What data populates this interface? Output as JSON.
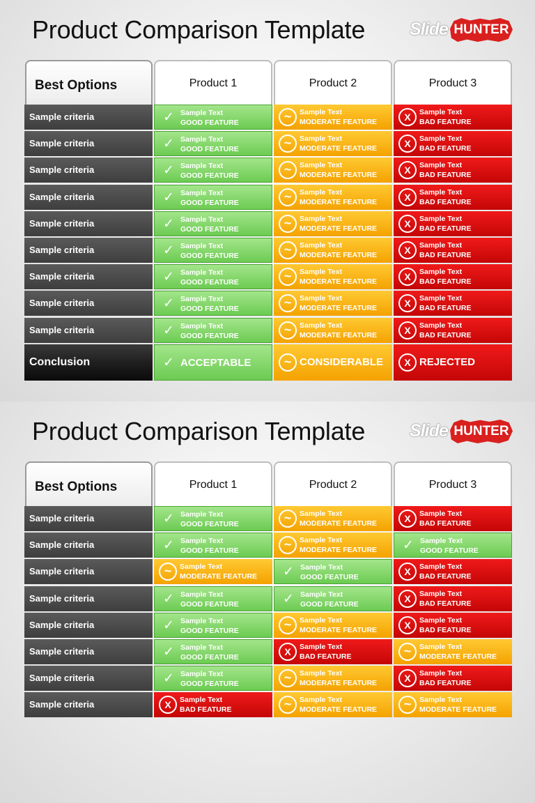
{
  "slides": [
    {
      "title": "Product Comparison Template",
      "logo": {
        "slide_word": "Slide",
        "hunter_word": "HUNTER"
      },
      "header": {
        "best_options": "Best Options",
        "products": [
          "Product 1",
          "Product 2",
          "Product 3"
        ]
      },
      "rows": [
        {
          "criteria": "Sample criteria",
          "cells": [
            "good",
            "moderate",
            "bad"
          ]
        },
        {
          "criteria": "Sample criteria",
          "cells": [
            "good",
            "moderate",
            "bad"
          ]
        },
        {
          "criteria": "Sample criteria",
          "cells": [
            "good",
            "moderate",
            "bad"
          ]
        },
        {
          "criteria": "Sample criteria",
          "cells": [
            "good",
            "moderate",
            "bad"
          ]
        },
        {
          "criteria": "Sample criteria",
          "cells": [
            "good",
            "moderate",
            "bad"
          ]
        },
        {
          "criteria": "Sample criteria",
          "cells": [
            "good",
            "moderate",
            "bad"
          ]
        },
        {
          "criteria": "Sample criteria",
          "cells": [
            "good",
            "moderate",
            "bad"
          ]
        },
        {
          "criteria": "Sample criteria",
          "cells": [
            "good",
            "moderate",
            "bad"
          ]
        },
        {
          "criteria": "Sample criteria",
          "cells": [
            "good",
            "moderate",
            "bad"
          ]
        }
      ],
      "conclusion": {
        "label": "Conclusion",
        "cells": [
          {
            "type": "good",
            "text": "ACCEPTABLE"
          },
          {
            "type": "moderate",
            "text": "CONSIDERABLE"
          },
          {
            "type": "bad",
            "text": "REJECTED"
          }
        ]
      }
    },
    {
      "title": "Product Comparison Template",
      "logo": {
        "slide_word": "Slide",
        "hunter_word": "HUNTER"
      },
      "header": {
        "best_options": "Best Options",
        "products": [
          "Product 1",
          "Product 2",
          "Product 3"
        ]
      },
      "rows": [
        {
          "criteria": "Sample criteria",
          "cells": [
            "good",
            "moderate",
            "bad"
          ]
        },
        {
          "criteria": "Sample criteria",
          "cells": [
            "good",
            "moderate",
            "good"
          ]
        },
        {
          "criteria": "Sample criteria",
          "cells": [
            "moderate",
            "good",
            "bad"
          ]
        },
        {
          "criteria": "Sample criteria",
          "cells": [
            "good",
            "good",
            "bad"
          ]
        },
        {
          "criteria": "Sample criteria",
          "cells": [
            "good",
            "moderate",
            "bad"
          ]
        },
        {
          "criteria": "Sample criteria",
          "cells": [
            "good",
            "bad",
            "moderate"
          ]
        },
        {
          "criteria": "Sample criteria",
          "cells": [
            "good",
            "moderate",
            "bad"
          ]
        },
        {
          "criteria": "Sample criteria",
          "cells": [
            "bad",
            "moderate",
            "moderate"
          ]
        }
      ]
    }
  ],
  "cell_types": {
    "good": {
      "line1": "Sample Text",
      "line2": "GOOD FEATURE",
      "icon": "check-icon",
      "glyph": "✓",
      "color": "#6ccb52"
    },
    "moderate": {
      "line1": "Sample Text",
      "line2": "MODERATE FEATURE",
      "icon": "tilde-circle-icon",
      "glyph": "~",
      "color": "#f4a200"
    },
    "bad": {
      "line1": "Sample Text",
      "line2": "BAD FEATURE",
      "icon": "x-circle-icon",
      "glyph": "X",
      "color": "#c40606"
    }
  }
}
